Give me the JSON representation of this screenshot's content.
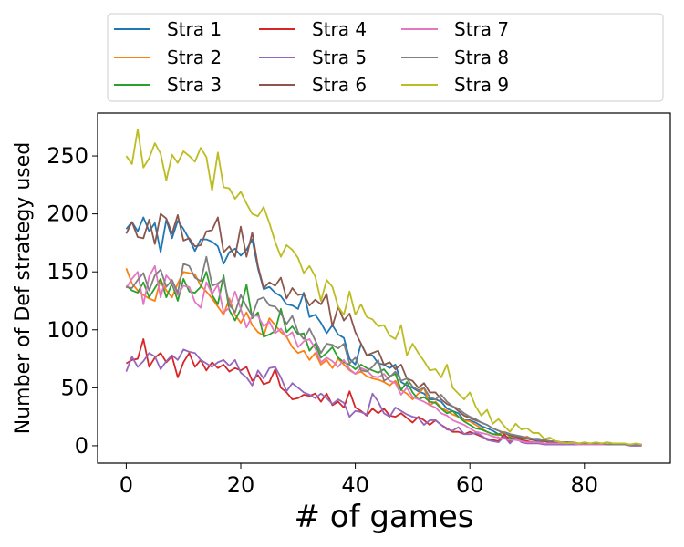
{
  "chart_data": {
    "type": "line",
    "xlabel": "# of games",
    "ylabel": "Number of Def strategy used",
    "xlim": [
      -5,
      95
    ],
    "ylim": [
      -15,
      287
    ],
    "xticks": [
      0,
      20,
      40,
      60,
      80
    ],
    "yticks": [
      0,
      50,
      100,
      150,
      200,
      250
    ],
    "legend_position": "top",
    "grid": false,
    "series": [
      {
        "name": "Stra 1",
        "color": "#1f77b4",
        "values": [
          187,
          193,
          185,
          197,
          185,
          192,
          167,
          195,
          179,
          194,
          187,
          178,
          168,
          178,
          178,
          176,
          172,
          157,
          167,
          170,
          164,
          169,
          178,
          153,
          135,
          137,
          132,
          129,
          122,
          121,
          118,
          132,
          111,
          113,
          106,
          97,
          104,
          96,
          93,
          75,
          70,
          88,
          78,
          78,
          71,
          70,
          67,
          70,
          55,
          52,
          50,
          47,
          45,
          40,
          40,
          38,
          32,
          30,
          28,
          22,
          22,
          20,
          17,
          15,
          13,
          10,
          12,
          10,
          9,
          8,
          7,
          6,
          6,
          5,
          4,
          4,
          3,
          3,
          3,
          2,
          2,
          2,
          2,
          2,
          1,
          1,
          1,
          1,
          1,
          1,
          1
        ]
      },
      {
        "name": "Stra 2",
        "color": "#ff7f0e",
        "values": [
          153,
          140,
          134,
          130,
          127,
          125,
          143,
          134,
          128,
          140,
          150,
          149,
          148,
          138,
          133,
          127,
          120,
          113,
          127,
          113,
          106,
          115,
          104,
          98,
          95,
          110,
          104,
          98,
          94,
          85,
          80,
          82,
          74,
          80,
          70,
          74,
          67,
          75,
          70,
          65,
          62,
          64,
          60,
          58,
          57,
          55,
          52,
          56,
          48,
          45,
          40,
          45,
          50,
          35,
          38,
          33,
          30,
          27,
          25,
          22,
          21,
          18,
          15,
          12,
          10,
          9,
          12,
          8,
          7,
          6,
          8,
          5,
          5,
          4,
          3,
          3,
          3,
          3,
          3,
          2,
          2,
          2,
          2,
          2,
          1,
          1,
          1,
          1,
          1,
          1,
          1
        ]
      },
      {
        "name": "Stra 3",
        "color": "#2ca02c",
        "values": [
          138,
          134,
          132,
          141,
          128,
          136,
          144,
          128,
          140,
          125,
          144,
          133,
          132,
          137,
          150,
          130,
          122,
          147,
          117,
          108,
          118,
          139,
          110,
          115,
          94,
          96,
          99,
          118,
          98,
          103,
          96,
          97,
          82,
          88,
          76,
          80,
          85,
          76,
          72,
          70,
          66,
          70,
          67,
          65,
          63,
          66,
          60,
          62,
          48,
          55,
          46,
          40,
          42,
          38,
          37,
          32,
          28,
          30,
          25,
          21,
          18,
          15,
          14,
          12,
          10,
          10,
          8,
          7,
          6,
          6,
          6,
          5,
          4,
          4,
          3,
          3,
          3,
          3,
          2,
          2,
          2,
          2,
          2,
          1,
          1,
          1,
          1,
          1,
          1,
          1,
          1
        ]
      },
      {
        "name": "Stra 4",
        "color": "#d62728",
        "values": [
          71,
          74,
          75,
          92,
          68,
          76,
          80,
          72,
          77,
          59,
          72,
          80,
          68,
          74,
          65,
          72,
          67,
          70,
          64,
          67,
          65,
          68,
          56,
          61,
          53,
          55,
          66,
          50,
          46,
          40,
          41,
          44,
          43,
          45,
          38,
          45,
          35,
          38,
          33,
          47,
          33,
          30,
          26,
          32,
          28,
          32,
          26,
          25,
          28,
          24,
          20,
          25,
          22,
          18,
          22,
          18,
          15,
          12,
          12,
          10,
          12,
          10,
          8,
          6,
          5,
          4,
          10,
          4,
          7,
          5,
          4,
          3,
          3,
          2,
          2,
          2,
          2,
          2,
          2,
          2,
          2,
          2,
          1,
          1,
          1,
          1,
          1,
          1,
          1,
          1,
          1
        ]
      },
      {
        "name": "Stra 5",
        "color": "#9467bd",
        "values": [
          64,
          77,
          68,
          73,
          80,
          77,
          66,
          73,
          78,
          74,
          83,
          81,
          80,
          74,
          71,
          68,
          72,
          74,
          69,
          74,
          63,
          59,
          52,
          65,
          58,
          67,
          68,
          59,
          47,
          54,
          50,
          46,
          44,
          41,
          45,
          41,
          36,
          40,
          37,
          25,
          30,
          29,
          27,
          45,
          38,
          28,
          25,
          33,
          30,
          27,
          25,
          24,
          18,
          22,
          22,
          18,
          14,
          13,
          16,
          10,
          10,
          11,
          9,
          5,
          4,
          3,
          8,
          2,
          7,
          3,
          2,
          2,
          2,
          1,
          1,
          1,
          1,
          1,
          1,
          1,
          1,
          1,
          1,
          1,
          1,
          1,
          1,
          1,
          0,
          0,
          0
        ]
      },
      {
        "name": "Stra 6",
        "color": "#8c564b",
        "values": [
          183,
          193,
          180,
          179,
          195,
          174,
          200,
          196,
          183,
          199,
          177,
          179,
          172,
          173,
          185,
          186,
          197,
          167,
          172,
          163,
          189,
          163,
          184,
          155,
          136,
          141,
          138,
          145,
          127,
          136,
          130,
          131,
          121,
          126,
          122,
          131,
          103,
          120,
          108,
          114,
          98,
          88,
          78,
          80,
          82,
          70,
          72,
          66,
          70,
          58,
          56,
          50,
          54,
          46,
          46,
          40,
          36,
          34,
          30,
          26,
          24,
          22,
          20,
          18,
          15,
          13,
          11,
          9,
          8,
          7,
          6,
          5,
          4,
          4,
          3,
          3,
          3,
          2,
          2,
          2,
          2,
          2,
          1,
          1,
          1,
          1,
          1,
          1,
          1,
          1,
          1
        ]
      },
      {
        "name": "Stra 7",
        "color": "#e377c2",
        "values": [
          136,
          144,
          150,
          122,
          146,
          155,
          128,
          147,
          141,
          130,
          138,
          137,
          124,
          119,
          141,
          131,
          139,
          115,
          119,
          133,
          118,
          102,
          112,
          112,
          103,
          107,
          97,
          101,
          94,
          98,
          85,
          90,
          92,
          84,
          72,
          76,
          73,
          68,
          74,
          66,
          62,
          67,
          65,
          60,
          59,
          62,
          56,
          54,
          44,
          50,
          42,
          40,
          38,
          35,
          33,
          28,
          26,
          22,
          20,
          18,
          15,
          12,
          11,
          10,
          8,
          7,
          6,
          5,
          5,
          4,
          3,
          3,
          3,
          2,
          2,
          2,
          2,
          2,
          2,
          1,
          1,
          1,
          1,
          1,
          1,
          1,
          1,
          1,
          1,
          1,
          1
        ]
      },
      {
        "name": "Stra 8",
        "color": "#7f7f7f",
        "values": [
          137,
          136,
          143,
          149,
          134,
          147,
          152,
          137,
          143,
          132,
          157,
          155,
          145,
          142,
          163,
          138,
          140,
          144,
          122,
          115,
          130,
          120,
          112,
          126,
          128,
          121,
          120,
          114,
          105,
          112,
          98,
          92,
          101,
          91,
          80,
          88,
          87,
          84,
          88,
          71,
          76,
          65,
          64,
          68,
          74,
          56,
          59,
          64,
          56,
          58,
          51,
          48,
          50,
          42,
          40,
          44,
          38,
          34,
          32,
          28,
          25,
          23,
          20,
          18,
          15,
          13,
          11,
          10,
          9,
          8,
          7,
          6,
          5,
          5,
          4,
          4,
          3,
          3,
          3,
          2,
          2,
          2,
          2,
          2,
          1,
          1,
          1,
          1,
          1,
          1,
          1
        ]
      },
      {
        "name": "Stra 9",
        "color": "#bcbd22",
        "values": [
          250,
          243,
          273,
          240,
          248,
          261,
          252,
          229,
          251,
          244,
          254,
          250,
          245,
          257,
          249,
          220,
          253,
          223,
          222,
          213,
          219,
          209,
          200,
          198,
          206,
          192,
          176,
          163,
          173,
          169,
          162,
          149,
          155,
          146,
          125,
          143,
          137,
          120,
          113,
          133,
          113,
          122,
          111,
          109,
          103,
          104,
          95,
          92,
          104,
          78,
          88,
          80,
          73,
          65,
          66,
          59,
          70,
          50,
          45,
          40,
          46,
          34,
          26,
          31,
          19,
          23,
          17,
          12,
          19,
          14,
          15,
          11,
          11,
          6,
          7,
          4,
          3,
          2,
          3,
          2,
          3,
          2,
          3,
          2,
          3,
          2,
          2,
          2,
          1,
          2,
          1
        ]
      }
    ]
  }
}
